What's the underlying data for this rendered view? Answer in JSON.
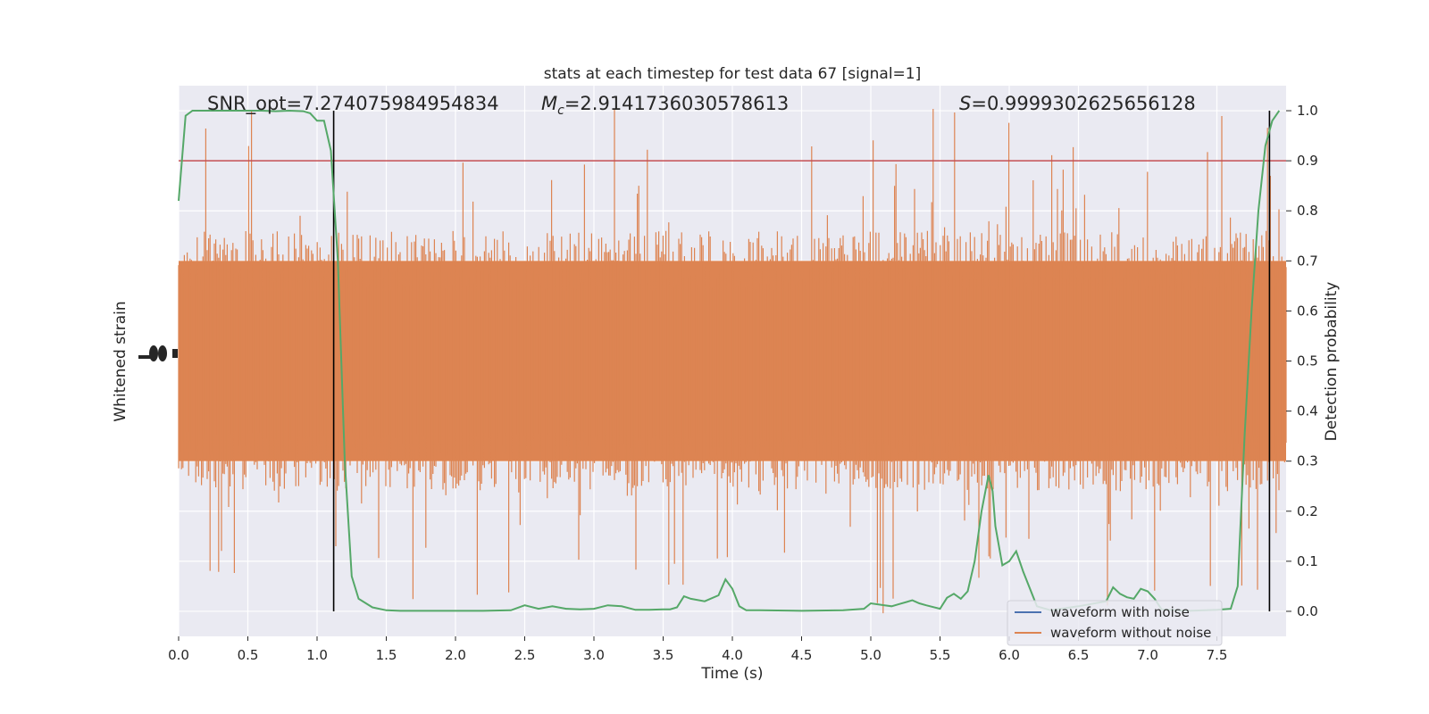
{
  "chart_data": {
    "type": "line",
    "title": "stats at each timestep for test data 67 [signal=1]",
    "xlabel": "Time (s)",
    "ylabel_left": "Whitened strain",
    "ylabel_right": "Detection probability",
    "xlim": [
      0,
      8.0
    ],
    "xticks": [
      0.0,
      0.5,
      1.0,
      1.5,
      2.0,
      2.5,
      3.0,
      3.5,
      4.0,
      4.5,
      5.0,
      5.5,
      6.0,
      6.5,
      7.0,
      7.5
    ],
    "xtick_labels": [
      "0.0",
      "0.5",
      "1.0",
      "1.5",
      "2.0",
      "2.5",
      "3.0",
      "3.5",
      "4.0",
      "4.5",
      "5.0",
      "5.5",
      "6.0",
      "6.5",
      "7.0",
      "7.5"
    ],
    "right_ylim": [
      -0.05,
      1.05
    ],
    "right_yticks": [
      0.0,
      0.1,
      0.2,
      0.3,
      0.4,
      0.5,
      0.6,
      0.7,
      0.8,
      0.9,
      1.0
    ],
    "right_ytick_labels": [
      "0.0",
      "0.1",
      "0.2",
      "0.3",
      "0.4",
      "0.5",
      "0.6",
      "0.7",
      "0.8",
      "0.9",
      "1.0"
    ],
    "grid": true,
    "legend_position": "bottom-right",
    "legend": [
      {
        "label": "waveform with noise",
        "color": "#4c72b0"
      },
      {
        "label": "waveform without noise",
        "color": "#dd8452"
      }
    ],
    "annotations": {
      "snr": "SNR_opt=7.274075984954834",
      "mc_symbol": "M",
      "mc_sub": "c",
      "mc_value": "=2.9141736030578613",
      "s_symbol": "S",
      "s_value": "=0.9999302625656128"
    },
    "threshold": {
      "value": 0.9,
      "color": "#c44e52"
    },
    "vertical_markers": [
      1.12,
      7.88
    ],
    "strain_series": {
      "name": "waveform without noise",
      "color": "#dd8452",
      "band_center": 0.5,
      "band_core_halfwidth": 0.2
    },
    "probability_series": {
      "color": "#55a868",
      "x": [
        0.0,
        0.05,
        0.1,
        0.2,
        0.3,
        0.4,
        0.5,
        0.6,
        0.7,
        0.8,
        0.9,
        0.95,
        1.0,
        1.05,
        1.1,
        1.15,
        1.2,
        1.25,
        1.3,
        1.4,
        1.5,
        1.6,
        1.8,
        2.0,
        2.2,
        2.4,
        2.5,
        2.6,
        2.7,
        2.8,
        2.9,
        3.0,
        3.1,
        3.2,
        3.3,
        3.4,
        3.5,
        3.55,
        3.6,
        3.65,
        3.7,
        3.8,
        3.9,
        3.95,
        4.0,
        4.05,
        4.1,
        4.2,
        4.5,
        4.8,
        4.95,
        5.0,
        5.1,
        5.15,
        5.2,
        5.3,
        5.35,
        5.4,
        5.5,
        5.55,
        5.6,
        5.65,
        5.7,
        5.75,
        5.8,
        5.85,
        5.88,
        5.9,
        5.95,
        6.0,
        6.05,
        6.1,
        6.2,
        6.3,
        6.5,
        6.7,
        6.75,
        6.8,
        6.85,
        6.9,
        6.95,
        7.0,
        7.05,
        7.1,
        7.3,
        7.5,
        7.6,
        7.65,
        7.7,
        7.75,
        7.8,
        7.85,
        7.9,
        7.95
      ],
      "y": [
        0.82,
        0.99,
        1.0,
        1.0,
        1.0,
        1.0,
        1.0,
        1.0,
        0.999,
        1.0,
        0.999,
        0.995,
        0.98,
        0.98,
        0.92,
        0.7,
        0.3,
        0.07,
        0.025,
        0.008,
        0.002,
        0.001,
        0.001,
        0.001,
        0.001,
        0.002,
        0.012,
        0.005,
        0.01,
        0.005,
        0.004,
        0.005,
        0.012,
        0.01,
        0.003,
        0.003,
        0.004,
        0.004,
        0.008,
        0.03,
        0.025,
        0.02,
        0.032,
        0.064,
        0.045,
        0.01,
        0.002,
        0.002,
        0.001,
        0.002,
        0.005,
        0.016,
        0.012,
        0.01,
        0.014,
        0.022,
        0.016,
        0.012,
        0.005,
        0.027,
        0.035,
        0.025,
        0.04,
        0.1,
        0.2,
        0.272,
        0.24,
        0.17,
        0.092,
        0.1,
        0.12,
        0.08,
        0.01,
        0.002,
        0.01,
        0.02,
        0.048,
        0.035,
        0.028,
        0.025,
        0.045,
        0.04,
        0.025,
        0.004,
        0.001,
        0.003,
        0.005,
        0.05,
        0.35,
        0.6,
        0.8,
        0.93,
        0.98,
        1.0
      ]
    }
  }
}
